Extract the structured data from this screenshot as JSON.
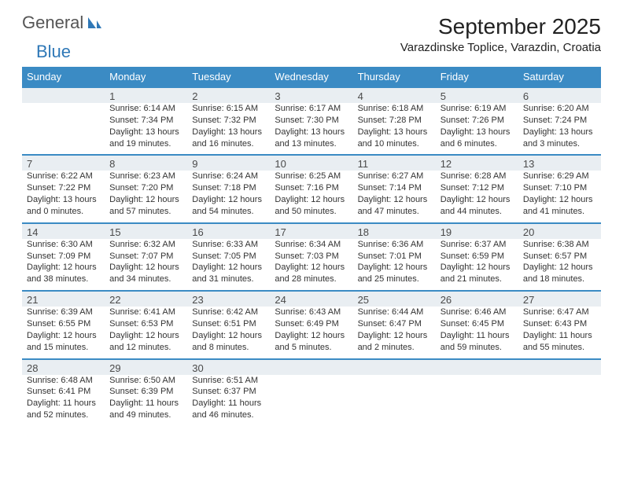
{
  "brand": {
    "part1": "General",
    "part2": "Blue"
  },
  "title": "September 2025",
  "location": "Varazdinske Toplice, Varazdin, Croatia",
  "colors": {
    "header_bg": "#3b8bc4",
    "header_text": "#ffffff",
    "daynum_bg": "#e9eef2",
    "row_border": "#3b8bc4",
    "text": "#333333",
    "brand_gray": "#555555",
    "brand_blue": "#2f78b7"
  },
  "layout": {
    "columns": 7,
    "rows": 5,
    "font_family": "Arial",
    "title_fontsize": 28,
    "subtitle_fontsize": 15,
    "header_fontsize": 13,
    "daynum_fontsize": 13,
    "cell_fontsize": 11
  },
  "day_headers": [
    "Sunday",
    "Monday",
    "Tuesday",
    "Wednesday",
    "Thursday",
    "Friday",
    "Saturday"
  ],
  "weeks": [
    [
      {
        "num": "",
        "sr": "",
        "ss": "",
        "dl": ""
      },
      {
        "num": "1",
        "sr": "6:14 AM",
        "ss": "7:34 PM",
        "dl": "13 hours and 19 minutes."
      },
      {
        "num": "2",
        "sr": "6:15 AM",
        "ss": "7:32 PM",
        "dl": "13 hours and 16 minutes."
      },
      {
        "num": "3",
        "sr": "6:17 AM",
        "ss": "7:30 PM",
        "dl": "13 hours and 13 minutes."
      },
      {
        "num": "4",
        "sr": "6:18 AM",
        "ss": "7:28 PM",
        "dl": "13 hours and 10 minutes."
      },
      {
        "num": "5",
        "sr": "6:19 AM",
        "ss": "7:26 PM",
        "dl": "13 hours and 6 minutes."
      },
      {
        "num": "6",
        "sr": "6:20 AM",
        "ss": "7:24 PM",
        "dl": "13 hours and 3 minutes."
      }
    ],
    [
      {
        "num": "7",
        "sr": "6:22 AM",
        "ss": "7:22 PM",
        "dl": "13 hours and 0 minutes."
      },
      {
        "num": "8",
        "sr": "6:23 AM",
        "ss": "7:20 PM",
        "dl": "12 hours and 57 minutes."
      },
      {
        "num": "9",
        "sr": "6:24 AM",
        "ss": "7:18 PM",
        "dl": "12 hours and 54 minutes."
      },
      {
        "num": "10",
        "sr": "6:25 AM",
        "ss": "7:16 PM",
        "dl": "12 hours and 50 minutes."
      },
      {
        "num": "11",
        "sr": "6:27 AM",
        "ss": "7:14 PM",
        "dl": "12 hours and 47 minutes."
      },
      {
        "num": "12",
        "sr": "6:28 AM",
        "ss": "7:12 PM",
        "dl": "12 hours and 44 minutes."
      },
      {
        "num": "13",
        "sr": "6:29 AM",
        "ss": "7:10 PM",
        "dl": "12 hours and 41 minutes."
      }
    ],
    [
      {
        "num": "14",
        "sr": "6:30 AM",
        "ss": "7:09 PM",
        "dl": "12 hours and 38 minutes."
      },
      {
        "num": "15",
        "sr": "6:32 AM",
        "ss": "7:07 PM",
        "dl": "12 hours and 34 minutes."
      },
      {
        "num": "16",
        "sr": "6:33 AM",
        "ss": "7:05 PM",
        "dl": "12 hours and 31 minutes."
      },
      {
        "num": "17",
        "sr": "6:34 AM",
        "ss": "7:03 PM",
        "dl": "12 hours and 28 minutes."
      },
      {
        "num": "18",
        "sr": "6:36 AM",
        "ss": "7:01 PM",
        "dl": "12 hours and 25 minutes."
      },
      {
        "num": "19",
        "sr": "6:37 AM",
        "ss": "6:59 PM",
        "dl": "12 hours and 21 minutes."
      },
      {
        "num": "20",
        "sr": "6:38 AM",
        "ss": "6:57 PM",
        "dl": "12 hours and 18 minutes."
      }
    ],
    [
      {
        "num": "21",
        "sr": "6:39 AM",
        "ss": "6:55 PM",
        "dl": "12 hours and 15 minutes."
      },
      {
        "num": "22",
        "sr": "6:41 AM",
        "ss": "6:53 PM",
        "dl": "12 hours and 12 minutes."
      },
      {
        "num": "23",
        "sr": "6:42 AM",
        "ss": "6:51 PM",
        "dl": "12 hours and 8 minutes."
      },
      {
        "num": "24",
        "sr": "6:43 AM",
        "ss": "6:49 PM",
        "dl": "12 hours and 5 minutes."
      },
      {
        "num": "25",
        "sr": "6:44 AM",
        "ss": "6:47 PM",
        "dl": "12 hours and 2 minutes."
      },
      {
        "num": "26",
        "sr": "6:46 AM",
        "ss": "6:45 PM",
        "dl": "11 hours and 59 minutes."
      },
      {
        "num": "27",
        "sr": "6:47 AM",
        "ss": "6:43 PM",
        "dl": "11 hours and 55 minutes."
      }
    ],
    [
      {
        "num": "28",
        "sr": "6:48 AM",
        "ss": "6:41 PM",
        "dl": "11 hours and 52 minutes."
      },
      {
        "num": "29",
        "sr": "6:50 AM",
        "ss": "6:39 PM",
        "dl": "11 hours and 49 minutes."
      },
      {
        "num": "30",
        "sr": "6:51 AM",
        "ss": "6:37 PM",
        "dl": "11 hours and 46 minutes."
      },
      {
        "num": "",
        "sr": "",
        "ss": "",
        "dl": ""
      },
      {
        "num": "",
        "sr": "",
        "ss": "",
        "dl": ""
      },
      {
        "num": "",
        "sr": "",
        "ss": "",
        "dl": ""
      },
      {
        "num": "",
        "sr": "",
        "ss": "",
        "dl": ""
      }
    ]
  ],
  "labels": {
    "sunrise": "Sunrise:",
    "sunset": "Sunset:",
    "daylight": "Daylight:"
  }
}
